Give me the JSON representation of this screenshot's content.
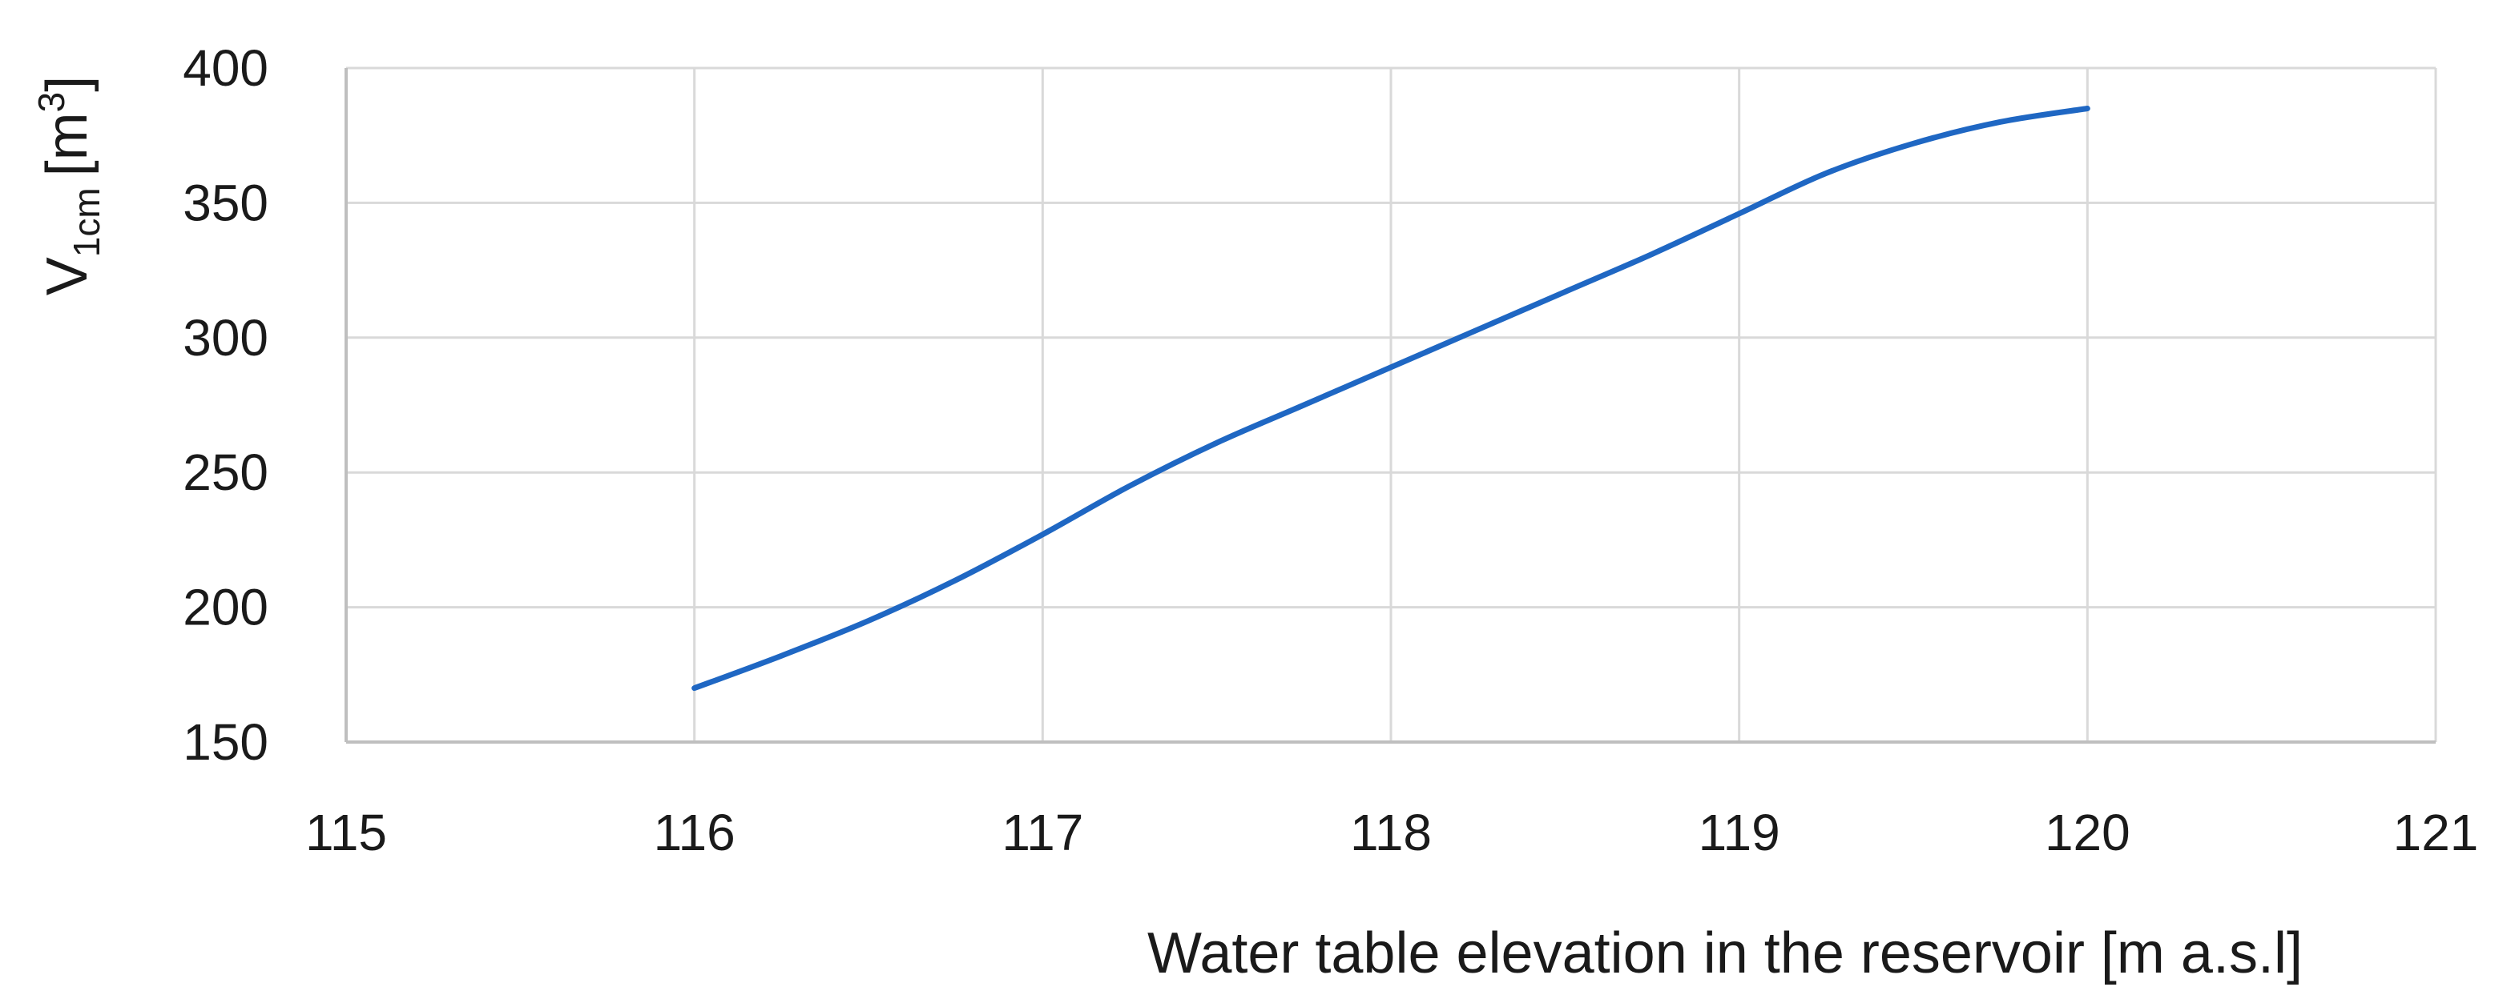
{
  "chart_data": {
    "type": "line",
    "title": "",
    "xlabel": "Water table elevation in the reservoir [m a.s.l]",
    "ylabel": {
      "main": "V",
      "subscript": "1cm",
      "unit_open": "[m",
      "unit_superscript": "3",
      "unit_close": "]"
    },
    "xlim": [
      115,
      121
    ],
    "ylim": [
      150,
      400
    ],
    "xticks": [
      "115",
      "116",
      "117",
      "118",
      "119",
      "120",
      "121"
    ],
    "yticks": [
      "150",
      "200",
      "250",
      "300",
      "350",
      "400"
    ],
    "grid": true,
    "legend": "none",
    "series": [
      {
        "color": "#1f67c3",
        "points": [
          [
            116.0,
            170
          ],
          [
            116.25,
            182
          ],
          [
            116.5,
            195
          ],
          [
            116.75,
            210
          ],
          [
            117.0,
            227
          ],
          [
            117.25,
            245
          ],
          [
            117.5,
            261
          ],
          [
            117.75,
            275
          ],
          [
            118.0,
            289
          ],
          [
            118.25,
            303
          ],
          [
            118.5,
            317
          ],
          [
            118.75,
            331
          ],
          [
            119.0,
            346
          ],
          [
            119.25,
            361
          ],
          [
            119.5,
            372
          ],
          [
            119.75,
            380
          ],
          [
            120.0,
            385
          ]
        ]
      }
    ]
  }
}
